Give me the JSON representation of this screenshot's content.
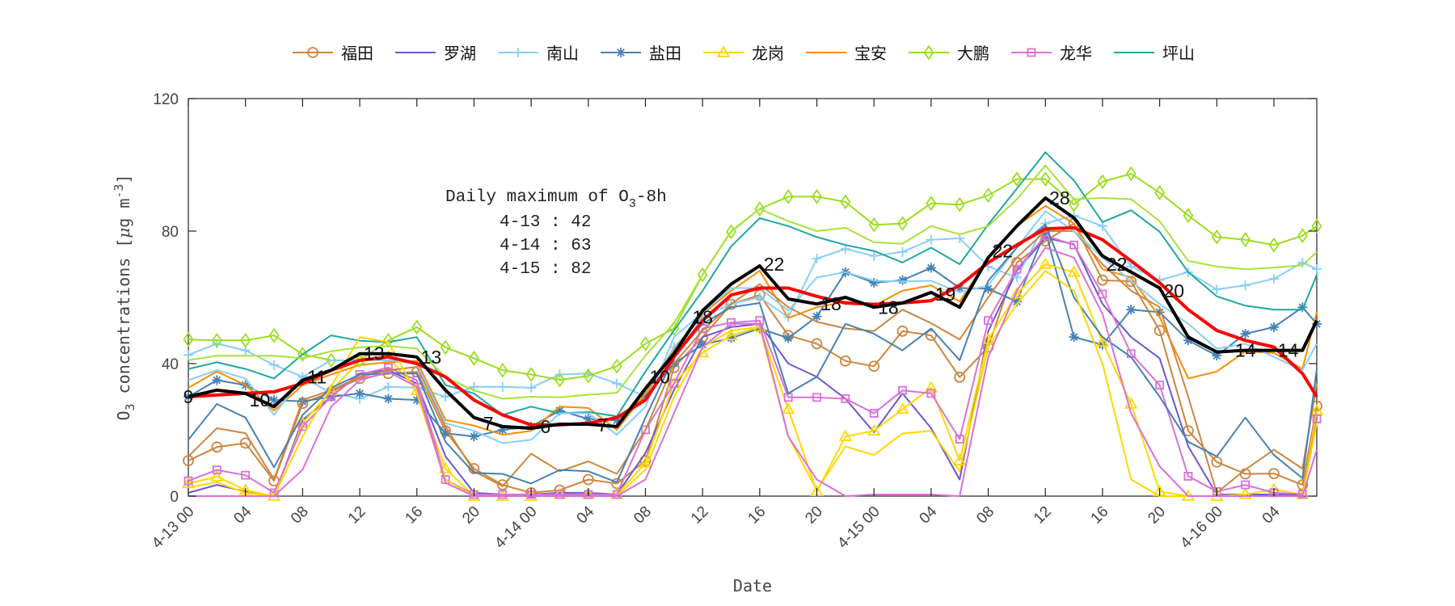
{
  "chart_data": {
    "type": "line",
    "xlabel": "Date",
    "ylabel": {
      "base": "O",
      "sub": "3",
      "mid": " concentrations [",
      "mu": "μ",
      "unit": "g m",
      "sup": "-3",
      "end": "]"
    },
    "ylim": [
      0,
      120
    ],
    "yticks": [
      0,
      40,
      80,
      120
    ],
    "xlim": [
      "4-13 00",
      "4-16 07"
    ],
    "xticks": [
      "4-13 00",
      "4-13 04",
      "4-13 08",
      "4-13 12",
      "4-13 16",
      "4-13 20",
      "4-14 00",
      "4-14 04",
      "4-14 08",
      "4-14 12",
      "4-14 16",
      "4-14 20",
      "4-15 00",
      "4-15 04",
      "4-15 08",
      "4-15 12",
      "4-15 16",
      "4-15 20",
      "4-16 00",
      "4-16 04"
    ],
    "xtick_labels": [
      "4-13 00",
      "04",
      "08",
      "12",
      "16",
      "20",
      "4-14 00",
      "04",
      "08",
      "12",
      "16",
      "20",
      "4-15 00",
      "04",
      "08",
      "12",
      "16",
      "20",
      "4-16 00",
      "04"
    ],
    "grid": false,
    "legend_placement": "top (outside, horizontal)",
    "x": [
      "4-13 00",
      "4-13 02",
      "4-13 04",
      "4-13 06",
      "4-13 08",
      "4-13 10",
      "4-13 12",
      "4-13 14",
      "4-13 16",
      "4-13 18",
      "4-13 20",
      "4-13 22",
      "4-14 00",
      "4-14 02",
      "4-14 04",
      "4-14 06",
      "4-14 08",
      "4-14 10",
      "4-14 12",
      "4-14 14",
      "4-14 16",
      "4-14 18",
      "4-14 20",
      "4-14 22",
      "4-15 00",
      "4-15 02",
      "4-15 04",
      "4-15 06",
      "4-15 08",
      "4-15 10",
      "4-15 12",
      "4-15 14",
      "4-15 16",
      "4-15 18",
      "4-15 20",
      "4-15 22",
      "4-16 00",
      "4-16 02",
      "4-16 04",
      "4-16 06",
      "4-16 07"
    ],
    "series": [
      {
        "name": "福田",
        "color": "#CD853F",
        "marker": "circle",
        "values": [
          10.7,
          14.8,
          16,
          4.6,
          28,
          31.5,
          35.5,
          37,
          37.5,
          19.7,
          8.3,
          3.4,
          1,
          1.8,
          5,
          3.8,
          10.7,
          38.8,
          48,
          57.9,
          60.7,
          48.5,
          46,
          40.8,
          39.2,
          49.8,
          48.5,
          35.9,
          45,
          70.5,
          77,
          82.3,
          65.2,
          64.8,
          50,
          19.7,
          10.3,
          6.7,
          6.8,
          3.4,
          27.2
        ]
      },
      {
        "name": "罗湖",
        "color": "#6A5ACD",
        "marker": "none",
        "values": [
          1,
          3.4,
          1.4,
          0,
          23,
          30,
          37,
          38,
          34,
          12,
          1,
          0.5,
          0.5,
          1,
          1,
          0.5,
          13,
          32,
          48,
          51,
          52,
          40,
          36,
          29.4,
          19.3,
          31,
          20.5,
          5,
          49.8,
          68,
          78,
          76,
          58,
          48,
          41.6,
          15,
          0.5,
          0.5,
          0.5,
          0.5,
          25
        ]
      },
      {
        "name": "南山",
        "color": "#87CEFA",
        "marker": "plus",
        "values": [
          42.6,
          46,
          44,
          39.6,
          36,
          31,
          29.4,
          33,
          32.7,
          30,
          33,
          33,
          32.7,
          36.7,
          37,
          34,
          30,
          45,
          54,
          58,
          60,
          54,
          71.7,
          74.6,
          72.5,
          73.7,
          77.4,
          77.8,
          69.3,
          66,
          82.3,
          84.7,
          81.5,
          69.3,
          65.2,
          67.6,
          62.4,
          63.6,
          65.6,
          70.5,
          68.5
        ]
      },
      {
        "name": "盐田",
        "color": "#4682B4",
        "marker": "asterisk",
        "values": [
          30,
          35,
          33.5,
          29,
          28.6,
          30,
          31,
          29.4,
          29,
          19,
          18,
          20,
          21,
          25.8,
          23.3,
          22.9,
          30.2,
          40,
          45.7,
          47.7,
          50.6,
          47.7,
          54.2,
          67.6,
          64.4,
          65.2,
          68.9,
          62.8,
          62.6,
          58.7,
          80,
          48,
          45.7,
          56.3,
          55.5,
          47,
          42.4,
          49,
          51,
          57,
          52
        ]
      },
      {
        "name": "龙岗",
        "color": "#FFD700",
        "marker": "triangle",
        "values": [
          3.8,
          5.9,
          1.8,
          0,
          22,
          31.9,
          40.8,
          42,
          31.9,
          8.3,
          0,
          0,
          0,
          0.5,
          0.5,
          0.5,
          10,
          34,
          43.3,
          48.5,
          51,
          26.2,
          1.4,
          18,
          19.7,
          26.2,
          32.7,
          10.7,
          47.3,
          61,
          70,
          67.6,
          46.5,
          27.8,
          1.4,
          0,
          0,
          0.5,
          2,
          0.5,
          25.8
        ]
      },
      {
        "name": "宝安",
        "color": "#FF8C00",
        "marker": "none",
        "values": [
          32.7,
          37.6,
          33.5,
          25.8,
          33.5,
          36.7,
          39.6,
          40.4,
          40.8,
          23,
          21.3,
          18.5,
          19.7,
          27,
          26.6,
          20,
          31,
          44,
          55,
          62,
          68,
          53.8,
          57,
          58.7,
          57.5,
          62,
          63.6,
          58.7,
          71.7,
          81.5,
          87.6,
          82.3,
          68.5,
          66,
          54,
          35.5,
          37.6,
          43.7,
          43.2,
          38.4,
          55.5
        ]
      },
      {
        "name": "大鹏",
        "color": "#9ADE1E",
        "marker": "diamond",
        "values": [
          47.3,
          47,
          47,
          48.5,
          42.8,
          41,
          41,
          47,
          51,
          44.9,
          41.6,
          38,
          36.7,
          35.1,
          36.3,
          39.2,
          46,
          50.6,
          66.8,
          79.8,
          86.7,
          90.4,
          90.4,
          88.8,
          81.9,
          82.3,
          88.4,
          88,
          90.8,
          95.7,
          95.7,
          88,
          94.9,
          97.3,
          91.6,
          84.7,
          78.2,
          77.4,
          75.8,
          78.6,
          81.5
        ]
      },
      {
        "name": "龙华",
        "color": "#DA70D6",
        "marker": "square",
        "values": [
          4.6,
          7.9,
          6.3,
          1,
          21,
          30,
          36.7,
          38.8,
          35,
          5,
          0.5,
          0.5,
          0.5,
          0.5,
          0.5,
          0.5,
          20,
          34,
          50.6,
          52.4,
          53,
          29.8,
          29.8,
          29.4,
          25,
          31.9,
          31,
          17.2,
          53,
          68.5,
          78.6,
          75.8,
          61,
          43,
          33.5,
          6,
          1.4,
          3.4,
          1,
          0.6,
          23.3
        ]
      },
      {
        "name": "坪山",
        "color": "#20A8A0",
        "marker": "none",
        "values": [
          38.4,
          40.4,
          38.4,
          35.5,
          42.8,
          48.5,
          46.9,
          46.5,
          48,
          33.5,
          31,
          24.5,
          27,
          25,
          25.4,
          24.1,
          37.6,
          50,
          62,
          75.4,
          83.9,
          81.5,
          78.2,
          75.8,
          74,
          70.5,
          75,
          70,
          82,
          92.8,
          103.8,
          95.3,
          82.7,
          86.3,
          79.8,
          67.6,
          60.3,
          57.5,
          56.3,
          56.3,
          66.8
        ]
      },
      {
        "color": "#CD853F",
        "marker": "none",
        "values": [
          12,
          20.5,
          19,
          5,
          29,
          32,
          36,
          38,
          39,
          21,
          7.5,
          3,
          12.8,
          7.5,
          10.5,
          6.7,
          20,
          40,
          50,
          58,
          64,
          57,
          52.6,
          50.6,
          49.8,
          56.3,
          52.2,
          47.3,
          60,
          72,
          80,
          80,
          70,
          62,
          57,
          30,
          1,
          8,
          14,
          8.3,
          34
        ]
      },
      {
        "color": "#87CEFA",
        "marker": "none",
        "values": [
          35,
          38,
          35.5,
          24.5,
          36,
          41,
          41,
          41,
          40,
          22,
          19.7,
          16,
          17,
          25,
          25,
          18.5,
          27,
          48,
          55.4,
          62.8,
          62.8,
          56,
          66,
          67.6,
          65,
          64.8,
          65,
          61.5,
          63.6,
          75,
          86,
          80,
          72,
          65,
          58,
          52,
          44.5,
          46,
          42,
          38,
          46
        ]
      },
      {
        "color": "#4682B4",
        "marker": "none",
        "values": [
          17,
          27.8,
          23.7,
          8.7,
          24.5,
          32.7,
          36.7,
          37,
          37,
          16.4,
          7,
          6.7,
          3.8,
          7.9,
          7.5,
          4.2,
          23.7,
          42,
          52,
          57,
          58.3,
          31,
          36,
          52,
          49,
          44,
          50.6,
          41,
          65,
          75,
          82,
          60,
          48,
          42,
          30,
          16.4,
          12,
          23.7,
          12.4,
          5.4,
          38.4
        ]
      },
      {
        "color": "#FFD700",
        "marker": "none",
        "values": [
          2.6,
          4.2,
          1,
          0,
          18,
          33,
          48,
          46.5,
          31,
          5,
          0,
          0,
          0,
          0,
          0,
          0,
          8,
          30,
          45,
          50,
          51,
          18,
          1.8,
          15,
          12.4,
          18.9,
          19.7,
          7.5,
          45,
          58,
          68,
          62,
          40,
          5,
          0,
          0,
          0,
          0,
          0,
          0,
          22
        ]
      },
      {
        "color": "#A8E23A",
        "marker": "none",
        "values": [
          41,
          42.4,
          42.4,
          42.4,
          41.6,
          43.7,
          44.9,
          45.3,
          44.5,
          35.9,
          31.9,
          29.4,
          30,
          29.8,
          30.6,
          31.2,
          42.4,
          52.2,
          66.8,
          80,
          86.7,
          83,
          80,
          81,
          76.6,
          76.2,
          81.5,
          79,
          81.5,
          89.6,
          99.8,
          89.6,
          90,
          89.6,
          83,
          71,
          69.3,
          68.5,
          69,
          69.7,
          73.7
        ]
      },
      {
        "color": "#DA70D6",
        "marker": "none",
        "values": [
          0,
          0,
          0,
          0,
          8,
          27,
          35,
          37.5,
          33,
          4,
          0,
          0,
          0,
          0,
          0,
          0,
          5,
          25,
          45,
          52,
          52,
          18,
          5,
          0,
          0.5,
          0.5,
          0.5,
          0,
          42,
          62,
          75,
          72,
          55,
          25,
          9,
          0,
          0,
          0,
          0,
          0,
          14
        ]
      },
      {
        "color": "#FF0000",
        "marker": "none",
        "thick": true,
        "values": [
          30,
          30.5,
          31,
          31.5,
          34,
          38,
          41,
          42,
          40,
          36,
          29,
          24.5,
          21.5,
          21.5,
          22,
          23.7,
          29,
          42,
          53,
          60.7,
          62.8,
          62.8,
          60.3,
          58.3,
          57.9,
          58.3,
          59,
          63.6,
          70.5,
          75.8,
          80.7,
          81,
          77.4,
          71,
          64.4,
          56.3,
          50,
          47,
          45,
          37,
          30
        ]
      },
      {
        "color": "#000000",
        "marker": "none",
        "thick": true,
        "values": [
          30,
          32,
          31,
          27,
          35,
          38,
          43,
          43,
          42,
          32,
          23.7,
          21,
          20.5,
          21.7,
          21.7,
          21,
          32.5,
          43,
          56,
          64,
          69.5,
          59.5,
          58,
          60,
          57,
          58.3,
          61.5,
          57,
          72,
          81.5,
          90,
          84,
          72.5,
          67.6,
          62.8,
          48,
          43.5,
          44,
          44,
          44,
          53
        ]
      }
    ],
    "line_labels": [
      {
        "x": "4-13 00",
        "y": 30,
        "text": "9"
      },
      {
        "x": "4-13 05",
        "y": 29,
        "text": "10"
      },
      {
        "x": "4-13 09",
        "y": 36,
        "text": "11"
      },
      {
        "x": "4-13 13",
        "y": 43,
        "text": "13"
      },
      {
        "x": "4-13 17",
        "y": 42,
        "text": "13"
      },
      {
        "x": "4-13 21",
        "y": 22,
        "text": "7"
      },
      {
        "x": "4-14 01",
        "y": 21,
        "text": "6"
      },
      {
        "x": "4-14 05",
        "y": 21.5,
        "text": "7"
      },
      {
        "x": "4-14 09",
        "y": 36,
        "text": "10"
      },
      {
        "x": "4-14 12",
        "y": 54,
        "text": "18"
      },
      {
        "x": "4-14 17",
        "y": 70,
        "text": "22"
      },
      {
        "x": "4-14 21",
        "y": 58,
        "text": "18"
      },
      {
        "x": "4-15 01",
        "y": 57,
        "text": "18"
      },
      {
        "x": "4-15 05",
        "y": 61,
        "text": "19"
      },
      {
        "x": "4-15 09",
        "y": 74,
        "text": "22"
      },
      {
        "x": "4-15 13",
        "y": 90,
        "text": "28"
      },
      {
        "x": "4-15 17",
        "y": 70,
        "text": "22"
      },
      {
        "x": "4-15 21",
        "y": 62,
        "text": "20"
      },
      {
        "x": "4-16 02",
        "y": 44,
        "text": "14"
      },
      {
        "x": "4-16 05",
        "y": 44,
        "text": "14"
      }
    ],
    "annotation": {
      "title": {
        "pre": "Daily maximum of O",
        "sub": "3",
        "post": "-8h"
      },
      "lines": [
        "4-13 : 42",
        "4-14 : 63",
        "4-15 : 82"
      ]
    }
  }
}
